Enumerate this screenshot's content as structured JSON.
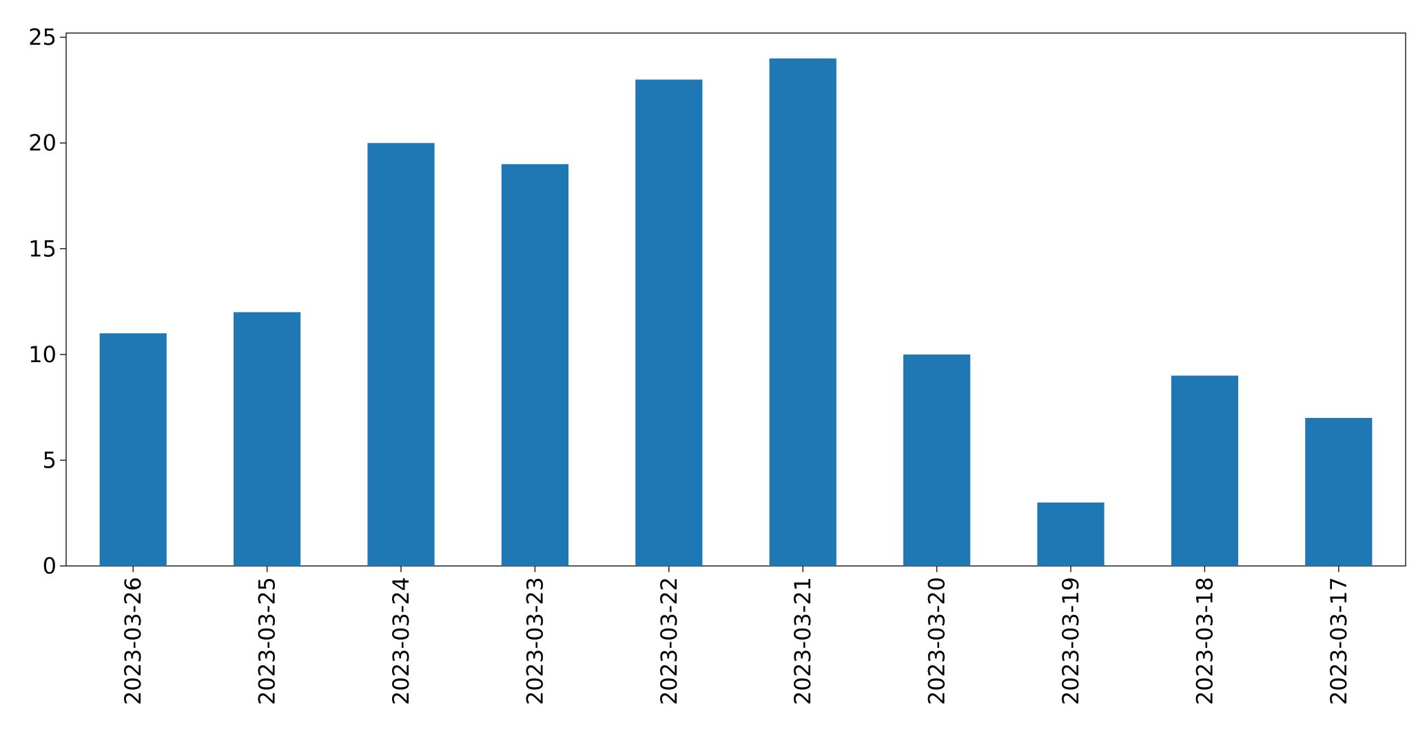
{
  "chart_data": {
    "type": "bar",
    "categories": [
      "2023-03-26",
      "2023-03-25",
      "2023-03-24",
      "2023-03-23",
      "2023-03-22",
      "2023-03-21",
      "2023-03-20",
      "2023-03-19",
      "2023-03-18",
      "2023-03-17"
    ],
    "values": [
      11,
      12,
      20,
      19,
      23,
      24,
      10,
      3,
      9,
      7
    ],
    "color": "#1f77b4",
    "ylim": [
      0,
      25.2
    ],
    "yticks": [
      0,
      5,
      10,
      15,
      20,
      25
    ],
    "grid": false
  }
}
